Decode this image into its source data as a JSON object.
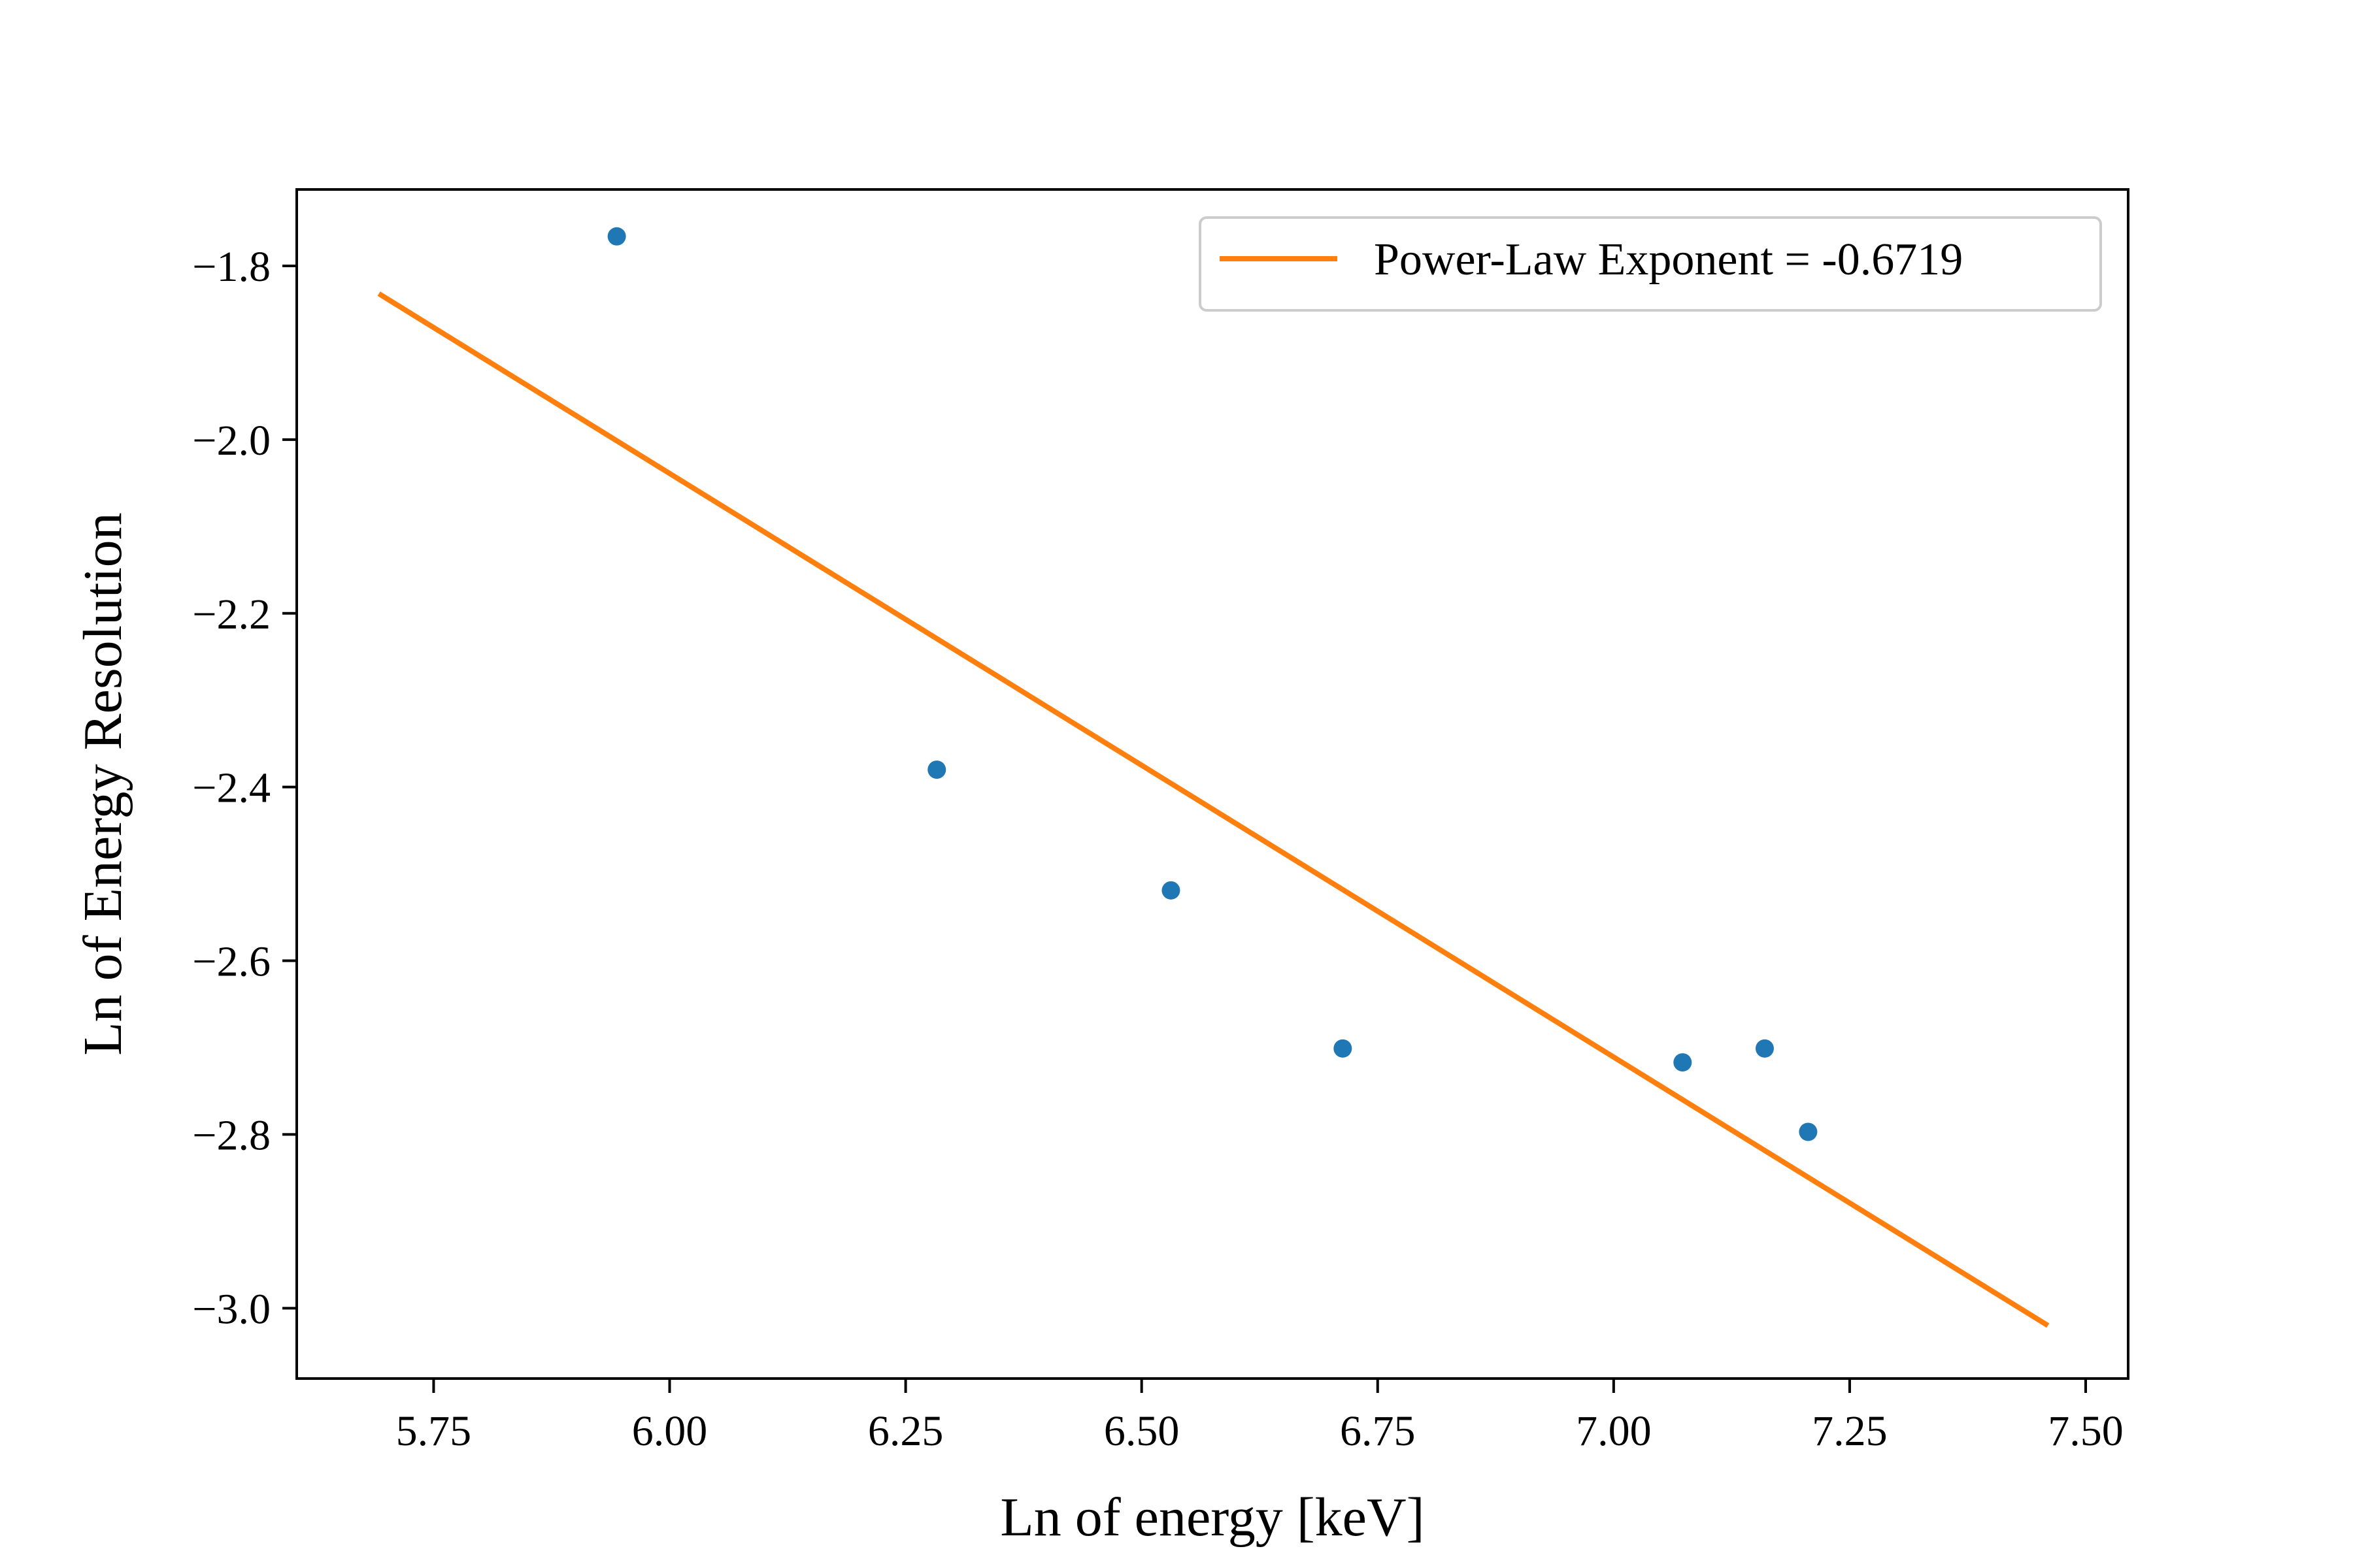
{
  "chart_data": {
    "type": "scatter",
    "title": "",
    "xlabel": "Ln of energy [keV]",
    "ylabel": "Ln of Energy Resolution",
    "xlim": [
      5.605,
      7.545
    ],
    "ylim": [
      -3.081,
      -1.712
    ],
    "xticks": [
      5.75,
      6.0,
      6.25,
      6.5,
      6.75,
      7.0,
      7.25,
      7.5
    ],
    "xtick_labels": [
      "5.75",
      "6.00",
      "6.25",
      "6.50",
      "6.75",
      "7.00",
      "7.25",
      "7.50"
    ],
    "yticks": [
      -1.8,
      -2.0,
      -2.2,
      -2.4,
      -2.6,
      -2.8,
      -3.0
    ],
    "ytick_labels": [
      "−1.8",
      "−2.0",
      "−2.2",
      "−2.4",
      "−2.6",
      "−2.8",
      "−3.0"
    ],
    "grid": false,
    "legend_position": "top-right",
    "series": [
      {
        "type": "scatter",
        "color": "#1f77b4",
        "x": [
          5.944,
          6.283,
          6.531,
          6.713,
          7.073,
          7.16,
          7.206
        ],
        "y": [
          -1.766,
          -2.38,
          -2.519,
          -2.701,
          -2.717,
          -2.701,
          -2.797
        ]
      },
      {
        "type": "line",
        "name": "Power-Law Exponent = -0.6719",
        "color": "#ff7f0e",
        "x": [
          5.692,
          7.46
        ],
        "y": [
          -1.832,
          -3.02
        ]
      }
    ]
  }
}
